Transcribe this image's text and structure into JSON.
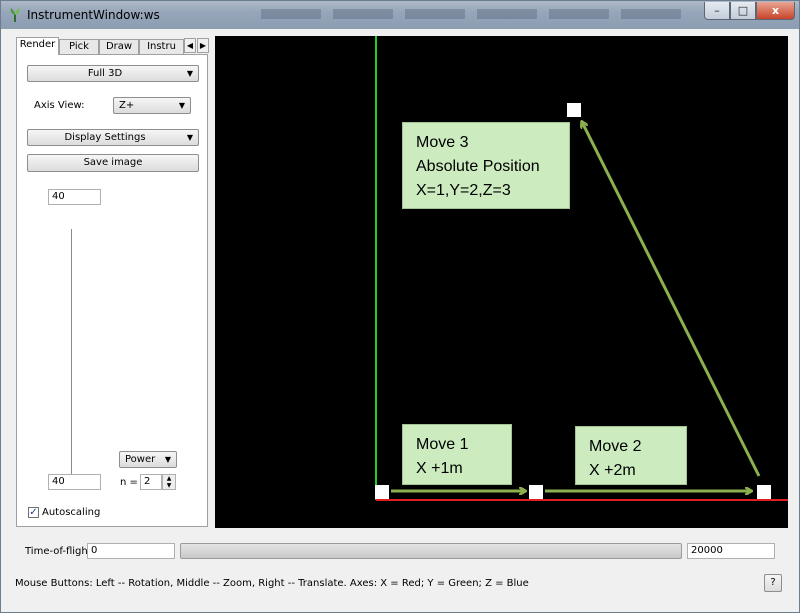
{
  "window": {
    "title": "InstrumentWindow:ws",
    "min_label": "–",
    "max_label": "□",
    "close_label": "x"
  },
  "tabs": [
    "Render",
    "Pick",
    "Draw",
    "Instru"
  ],
  "tab_scroll": {
    "left": "◀",
    "right": "▶"
  },
  "render": {
    "mode": "Full 3D",
    "axis_view_label": "Axis View:",
    "axis_view_value": "Z+",
    "display_settings_label": "Display Settings",
    "save_image_label": "Save image",
    "color_max": "40",
    "color_min": "40",
    "scale_type": "Power",
    "n_label": "n =",
    "n_value": "2",
    "autoscaling_label": "Autoscaling",
    "autoscaling_checked": true
  },
  "viewport": {
    "background": "#000000",
    "x_axis_color": "#e02020",
    "y_axis_color": "#22cc22",
    "arrow_color": "#8db04e",
    "callout_bg": "#ccecc0",
    "callouts": [
      {
        "lines": [
          "Move 3",
          "Absolute Position",
          "X=1,Y=2,Z=3"
        ]
      },
      {
        "lines": [
          "Move 1",
          "X +1m"
        ]
      },
      {
        "lines": [
          "Move 2",
          "X +2m"
        ]
      }
    ]
  },
  "time_of_flight": {
    "label": "Time-of-flight",
    "min": "0",
    "max": "20000"
  },
  "status": {
    "text": "Mouse Buttons: Left -- Rotation, Middle -- Zoom, Right -- Translate. Axes: X = Red; Y = Green; Z = Blue",
    "help_label": "?"
  },
  "icons": [
    "app-icon",
    "minimize-icon",
    "maximize-icon",
    "close-icon",
    "dropdown-arrow-icon",
    "spin-up-icon",
    "spin-down-icon",
    "checkmark-icon"
  ]
}
